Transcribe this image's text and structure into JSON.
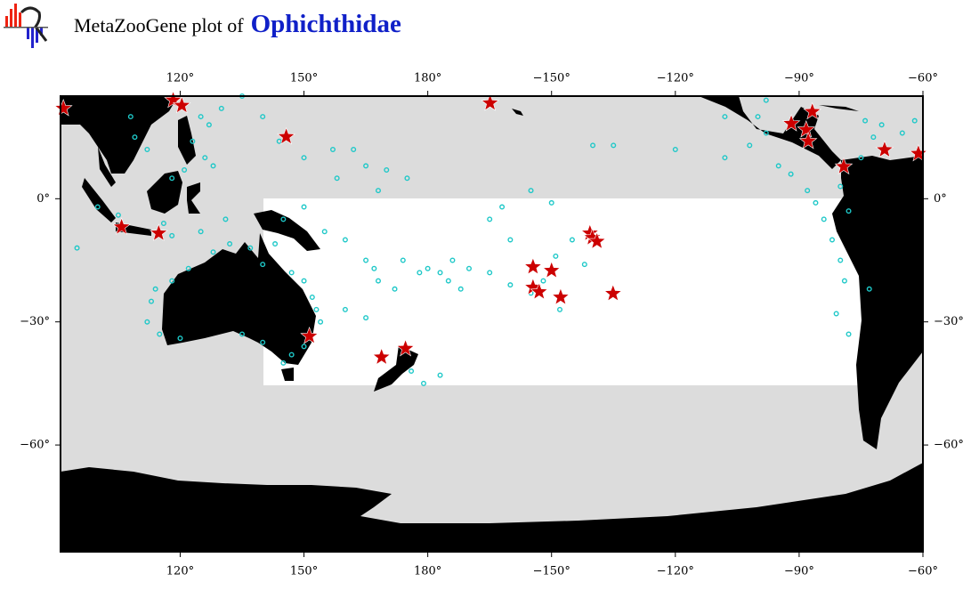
{
  "title": {
    "prefix": "MetaZooGene plot of",
    "taxon": "Ophichthidae"
  },
  "map": {
    "type": "map",
    "xlim": [
      91,
      300
    ],
    "ylim": [
      -86,
      25
    ],
    "xticks": [
      {
        "value": 120,
        "label": "120°"
      },
      {
        "value": 150,
        "label": "150°"
      },
      {
        "value": 180,
        "label": "180°"
      },
      {
        "value": 210,
        "label": "−150°"
      },
      {
        "value": 240,
        "label": "−120°"
      },
      {
        "value": 270,
        "label": "−90°"
      },
      {
        "value": 300,
        "label": "−60°"
      }
    ],
    "yticks": [
      {
        "value": 0,
        "label": "0°"
      },
      {
        "value": -30,
        "label": "−30°"
      },
      {
        "value": -60,
        "label": "−60°"
      }
    ],
    "circles": {
      "color": "#1ec8c8",
      "lon": [
        125,
        127,
        123,
        126,
        128,
        121,
        118,
        112,
        108,
        109,
        130,
        135,
        140,
        144,
        150,
        157,
        162,
        165,
        170,
        175,
        168,
        158,
        150,
        145,
        155,
        160,
        165,
        167,
        168,
        178,
        180,
        183,
        185,
        186,
        188,
        172,
        174,
        190,
        195,
        200,
        205,
        208,
        211,
        215,
        218,
        212,
        165,
        160,
        152,
        153,
        154,
        150,
        147,
        145,
        140,
        135,
        120,
        115,
        113,
        114,
        118,
        122,
        128,
        132,
        137,
        140,
        143,
        147,
        150,
        112,
        95,
        100,
        105,
        116,
        118,
        125,
        131,
        176,
        179,
        183,
        195,
        200,
        198,
        205,
        210,
        220,
        225,
        240,
        252,
        258,
        262,
        265,
        268,
        272,
        274,
        276,
        278,
        280,
        281,
        279,
        282,
        287,
        280,
        285,
        288,
        295,
        298,
        286,
        290,
        260,
        262,
        282,
        252
      ],
      "lat": [
        20,
        18,
        14,
        10,
        8,
        7,
        5,
        12,
        20,
        15,
        22,
        25,
        20,
        14,
        10,
        12,
        12,
        8,
        7,
        5,
        2,
        5,
        -2,
        -5,
        -8,
        -10,
        -15,
        -17,
        -20,
        -18,
        -17,
        -18,
        -20,
        -15,
        -22,
        -22,
        -15,
        -17,
        -18,
        -21,
        -23,
        -20,
        -14,
        -10,
        -16,
        -27,
        -29,
        -27,
        -24,
        -27,
        -30,
        -36,
        -38,
        -40,
        -35,
        -33,
        -34,
        -33,
        -25,
        -22,
        -20,
        -17,
        -13,
        -11,
        -12,
        -16,
        -11,
        -18,
        -20,
        -30,
        -12,
        -2,
        -4,
        -6,
        -9,
        -8,
        -5,
        -42,
        -45,
        -43,
        -5,
        -10,
        -2,
        2,
        -1,
        13,
        13,
        12,
        10,
        13,
        16,
        8,
        6,
        2,
        -1,
        -5,
        -10,
        -15,
        -20,
        -28,
        -33,
        -22,
        3,
        10,
        15,
        16,
        19,
        19,
        18,
        20,
        24,
        -3,
        20
      ]
    },
    "stars": {
      "color": "#cc0000",
      "lon": [
        91.7,
        118.3,
        120.4,
        105.8,
        114.8,
        145.7,
        195.1,
        151.3,
        168.8,
        174.6,
        205.5,
        210.0,
        205.5,
        207.0,
        212.2,
        219.3,
        219.9,
        221.0,
        224.9,
        268.1,
        271.7,
        272.2,
        273.2,
        280.8,
        290.7,
        298.9
      ],
      "lat": [
        22.0,
        24.0,
        22.7,
        -6.9,
        -8.4,
        15.1,
        23.3,
        -33.5,
        -38.6,
        -36.5,
        -16.6,
        -17.5,
        -21.6,
        -22.7,
        -24.0,
        -8.4,
        -9.5,
        -10.4,
        -23.1,
        18.3,
        16.8,
        14.0,
        21.2,
        7.8,
        11.9,
        11.0
      ]
    }
  }
}
